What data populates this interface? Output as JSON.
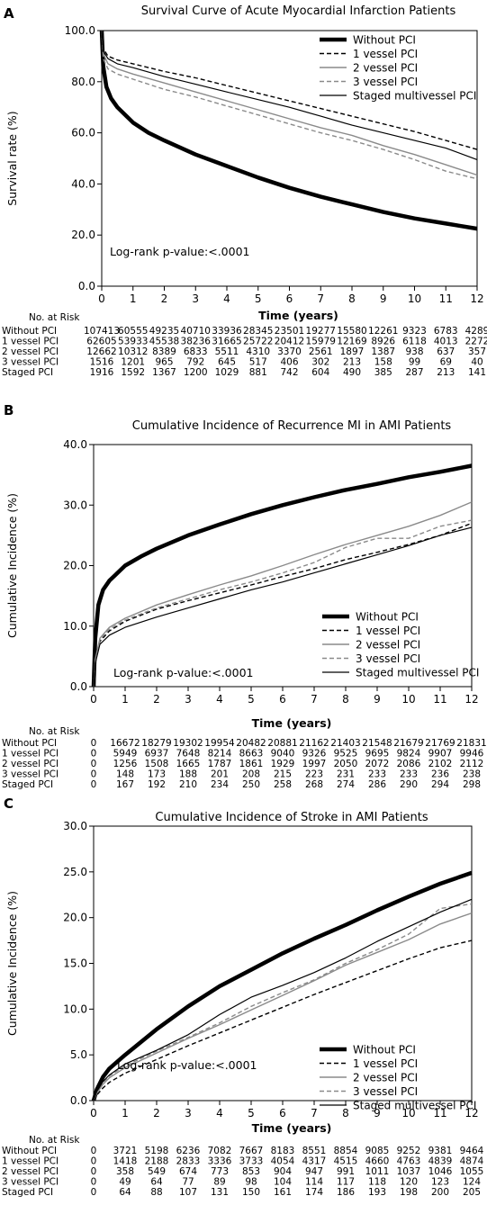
{
  "chart_data": [
    {
      "panel_letter": "A",
      "type": "line",
      "title": "Survival Curve of Acute Myocardial Infarction Patients",
      "xlabel": "Time (years)",
      "ylabel": "Survival rate (%)",
      "xlim": [
        0,
        12
      ],
      "ylim": [
        0,
        100
      ],
      "x_ticks": [
        0,
        1,
        2,
        3,
        4,
        5,
        6,
        7,
        8,
        9,
        10,
        11,
        12
      ],
      "y_ticks": [
        0.0,
        20.0,
        40.0,
        60.0,
        80.0,
        100.0
      ],
      "y_tick_labels": [
        "0.0",
        "20.0",
        "40.0",
        "60.0",
        "80.0",
        "100.0"
      ],
      "legend_position": "top-right",
      "annotation": "Log-rank p-value:<.0001",
      "series": [
        {
          "name": "Without PCI",
          "style": "thick",
          "color": "#000000",
          "x": [
            0,
            0.05,
            0.15,
            0.3,
            0.5,
            1,
            1.5,
            2,
            3,
            4,
            5,
            6,
            7,
            8,
            9,
            10,
            11,
            12
          ],
          "y": [
            100,
            86,
            78,
            73.5,
            70,
            64,
            60,
            57,
            51.5,
            47,
            42.5,
            38.5,
            35,
            32,
            29,
            26.5,
            24.5,
            22.5
          ]
        },
        {
          "name": "1 vessel PCI",
          "style": "dashed",
          "color": "#000000",
          "x": [
            0,
            0.05,
            0.2,
            0.5,
            1,
            2,
            3,
            4,
            5,
            6,
            7,
            8,
            9,
            10,
            11,
            12
          ],
          "y": [
            100,
            93,
            90,
            88.5,
            87,
            84,
            81.5,
            78.5,
            75.5,
            72.5,
            69.5,
            66.5,
            63.5,
            60.5,
            57,
            53.5
          ]
        },
        {
          "name": "2 vessel PCI",
          "style": "solid-gray",
          "color": "#8a8a8a",
          "x": [
            0,
            0.05,
            0.2,
            0.5,
            1,
            2,
            3,
            4,
            5,
            6,
            7,
            8,
            9,
            10,
            11,
            12
          ],
          "y": [
            100,
            91,
            87,
            85,
            83,
            79.5,
            76,
            72.5,
            69,
            65.5,
            62,
            59,
            55,
            51.5,
            47.5,
            43.5
          ]
        },
        {
          "name": "3 vessel PCI",
          "style": "dashed-gray",
          "color": "#8a8a8a",
          "x": [
            0,
            0.05,
            0.2,
            0.5,
            1,
            2,
            3,
            4,
            5,
            6,
            7,
            8,
            9,
            10,
            11,
            12
          ],
          "y": [
            100,
            89,
            85,
            83,
            81,
            77,
            74,
            70.5,
            67,
            63.5,
            60,
            57,
            53.5,
            49.5,
            45,
            42
          ]
        },
        {
          "name": "Staged multivessel PCI",
          "style": "thin",
          "color": "#000000",
          "x": [
            0,
            0.05,
            0.2,
            0.5,
            1,
            2,
            3,
            4,
            5,
            6,
            7,
            8,
            9,
            10,
            11,
            12
          ],
          "y": [
            100,
            92,
            89,
            87,
            85.5,
            82,
            79,
            76,
            73,
            70,
            66.5,
            63,
            60,
            57,
            54,
            49.5
          ]
        }
      ],
      "risk_table": {
        "header": "No. at Risk",
        "rows": [
          {
            "label": "Without PCI",
            "values": [
              "107413",
              "60555",
              "49235",
              "40710",
              "33936",
              "28345",
              "23501",
              "19277",
              "15580",
              "12261",
              "9323",
              "6783",
              "4289"
            ]
          },
          {
            "label": "1 vessel PCI",
            "values": [
              "62605",
              "53933",
              "45538",
              "38236",
              "31665",
              "25722",
              "20412",
              "15979",
              "12169",
              "8926",
              "6118",
              "4013",
              "2272"
            ]
          },
          {
            "label": "2 vessel PCI",
            "values": [
              "12662",
              "10312",
              "8389",
              "6833",
              "5511",
              "4310",
              "3370",
              "2561",
              "1897",
              "1387",
              "938",
              "637",
              "357"
            ]
          },
          {
            "label": "3 vessel PCI",
            "values": [
              "1516",
              "1201",
              "965",
              "792",
              "645",
              "517",
              "406",
              "302",
              "213",
              "158",
              "99",
              "69",
              "40"
            ]
          },
          {
            "label": "Staged PCI",
            "values": [
              "1916",
              "1592",
              "1367",
              "1200",
              "1029",
              "881",
              "742",
              "604",
              "490",
              "385",
              "287",
              "213",
              "141"
            ]
          }
        ]
      }
    },
    {
      "panel_letter": "B",
      "type": "line",
      "title": "Cumulative Incidence of Recurrence MI in AMI Patients",
      "xlabel": "Time (years)",
      "ylabel": "Cumulative Incidence (%)",
      "xlim": [
        0,
        12
      ],
      "ylim": [
        0,
        40
      ],
      "x_ticks": [
        0,
        1,
        2,
        3,
        4,
        5,
        6,
        7,
        8,
        9,
        10,
        11,
        12
      ],
      "y_ticks": [
        0.0,
        10.0,
        20.0,
        30.0,
        40.0
      ],
      "y_tick_labels": [
        "0.0",
        "10.0",
        "20.0",
        "30.0",
        "40.0"
      ],
      "legend_position": "bottom-right",
      "annotation": "Log-rank p-value:<.0001",
      "series": [
        {
          "name": "Without PCI",
          "style": "thick",
          "color": "#000000",
          "x": [
            0,
            0.05,
            0.15,
            0.3,
            0.5,
            1,
            1.5,
            2,
            3,
            4,
            5,
            6,
            7,
            8,
            9,
            10,
            11,
            12
          ],
          "y": [
            0,
            8,
            13.5,
            16,
            17.5,
            20,
            21.5,
            22.8,
            25,
            26.8,
            28.5,
            30,
            31.3,
            32.5,
            33.5,
            34.6,
            35.5,
            36.5
          ]
        },
        {
          "name": "1 vessel PCI",
          "style": "dashed",
          "color": "#000000",
          "x": [
            0,
            0.05,
            0.2,
            0.5,
            1,
            2,
            3,
            4,
            5,
            6,
            7,
            8,
            9,
            10,
            11,
            12
          ],
          "y": [
            0,
            4,
            7.5,
            9.2,
            10.8,
            12.8,
            14.2,
            15.5,
            16.8,
            18.2,
            19.5,
            21,
            22.2,
            23.5,
            25,
            27
          ]
        },
        {
          "name": "2 vessel PCI",
          "style": "solid-gray",
          "color": "#8a8a8a",
          "x": [
            0,
            0.05,
            0.2,
            0.5,
            1,
            2,
            3,
            4,
            5,
            6,
            7,
            8,
            9,
            10,
            11,
            12
          ],
          "y": [
            0,
            4.5,
            8,
            9.8,
            11.3,
            13.5,
            15.2,
            16.8,
            18.3,
            20,
            21.8,
            23.5,
            25,
            26.5,
            28.3,
            30.5
          ]
        },
        {
          "name": "3 vessel PCI",
          "style": "dashed-gray",
          "color": "#8a8a8a",
          "x": [
            0,
            0.05,
            0.2,
            0.5,
            1,
            2,
            3,
            4,
            5,
            6,
            7,
            8,
            9,
            10,
            11,
            12
          ],
          "y": [
            0,
            4.2,
            7.8,
            9.5,
            11,
            13,
            14.5,
            16,
            17.3,
            18.8,
            20.5,
            23,
            24.5,
            24.5,
            26.5,
            27.5
          ]
        },
        {
          "name": "Staged multivessel PCI",
          "style": "thin",
          "color": "#000000",
          "x": [
            0,
            0.05,
            0.2,
            0.5,
            1,
            2,
            3,
            4,
            5,
            6,
            7,
            8,
            9,
            10,
            11,
            12
          ],
          "y": [
            0,
            3.8,
            7,
            8.5,
            9.8,
            11.5,
            13,
            14.5,
            16,
            17.3,
            18.8,
            20.3,
            21.8,
            23.3,
            25,
            26.3
          ]
        }
      ],
      "risk_table": {
        "header": "No. at Risk",
        "rows": [
          {
            "label": "Without PCI",
            "values": [
              "0",
              "16672",
              "18279",
              "19302",
              "19954",
              "20482",
              "20881",
              "21162",
              "21403",
              "21548",
              "21679",
              "21769",
              "21831"
            ]
          },
          {
            "label": "1 vessel PCI",
            "values": [
              "0",
              "5949",
              "6937",
              "7648",
              "8214",
              "8663",
              "9040",
              "9326",
              "9525",
              "9695",
              "9824",
              "9907",
              "9946"
            ]
          },
          {
            "label": "2 vessel PCI",
            "values": [
              "0",
              "1256",
              "1508",
              "1665",
              "1787",
              "1861",
              "1929",
              "1997",
              "2050",
              "2072",
              "2086",
              "2102",
              "2112"
            ]
          },
          {
            "label": "3 vessel PCI",
            "values": [
              "0",
              "148",
              "173",
              "188",
              "201",
              "208",
              "215",
              "223",
              "231",
              "233",
              "233",
              "236",
              "238"
            ]
          },
          {
            "label": "Staged PCI",
            "values": [
              "0",
              "167",
              "192",
              "210",
              "234",
              "250",
              "258",
              "268",
              "274",
              "286",
              "290",
              "294",
              "298"
            ]
          }
        ]
      }
    },
    {
      "panel_letter": "C",
      "type": "line",
      "title": "Cumulative Incidence of Stroke in AMI Patients",
      "xlabel": "Time (years)",
      "ylabel": "Cumulative Incidence (%)",
      "xlim": [
        0,
        12
      ],
      "ylim": [
        0,
        30
      ],
      "x_ticks": [
        0,
        1,
        2,
        3,
        4,
        5,
        6,
        7,
        8,
        9,
        10,
        11,
        12
      ],
      "y_ticks": [
        0.0,
        5.0,
        10.0,
        15.0,
        20.0,
        25.0,
        30.0
      ],
      "y_tick_labels": [
        "0.0",
        "5.0",
        "10.0",
        "15.0",
        "20.0",
        "25.0",
        "30.0"
      ],
      "legend_position": "bottom-right",
      "annotation": "Log-rank p-value:<.0001",
      "series": [
        {
          "name": "Without PCI",
          "style": "thick",
          "color": "#000000",
          "x": [
            0,
            0.1,
            0.3,
            0.5,
            1,
            2,
            3,
            4,
            5,
            6,
            7,
            8,
            9,
            10,
            11,
            12
          ],
          "y": [
            0,
            1.2,
            2.6,
            3.5,
            5,
            7.8,
            10.3,
            12.5,
            14.3,
            16.1,
            17.7,
            19.2,
            20.8,
            22.3,
            23.7,
            24.9
          ]
        },
        {
          "name": "1 vessel PCI",
          "style": "dashed",
          "color": "#000000",
          "x": [
            0,
            0.1,
            0.3,
            0.5,
            1,
            2,
            3,
            4,
            5,
            6,
            7,
            8,
            9,
            10,
            11,
            12
          ],
          "y": [
            0,
            0.6,
            1.4,
            2,
            3,
            4.5,
            6,
            7.4,
            8.8,
            10.2,
            11.6,
            12.9,
            14.2,
            15.5,
            16.7,
            17.5
          ]
        },
        {
          "name": "2 vessel PCI",
          "style": "solid-gray",
          "color": "#8a8a8a",
          "x": [
            0,
            0.1,
            0.3,
            0.5,
            1,
            2,
            3,
            4,
            5,
            6,
            7,
            8,
            9,
            10,
            11,
            12
          ],
          "y": [
            0,
            0.8,
            1.8,
            2.5,
            3.6,
            5.2,
            6.8,
            8.3,
            9.9,
            11.5,
            13.1,
            14.8,
            16.2,
            17.6,
            19.3,
            20.5
          ]
        },
        {
          "name": "3 vessel PCI",
          "style": "dashed-gray",
          "color": "#8a8a8a",
          "x": [
            0,
            0.1,
            0.3,
            0.5,
            1,
            2,
            3,
            4,
            5,
            6,
            7,
            8,
            9,
            10,
            11,
            12
          ],
          "y": [
            0,
            0.9,
            2,
            2.7,
            3.8,
            5.4,
            6.9,
            8.5,
            10.3,
            11.8,
            13.2,
            15,
            16.5,
            18.2,
            21,
            21.5
          ]
        },
        {
          "name": "Staged multivessel PCI",
          "style": "thin",
          "color": "#000000",
          "x": [
            0,
            0.1,
            0.3,
            0.5,
            1,
            2,
            3,
            4,
            5,
            6,
            7,
            8,
            9,
            10,
            11,
            12
          ],
          "y": [
            0,
            1,
            2.1,
            2.8,
            4,
            5.5,
            7.2,
            9.4,
            11.3,
            12.6,
            14,
            15.6,
            17.4,
            19,
            20.6,
            22
          ]
        }
      ],
      "risk_table": {
        "header": "No. at Risk",
        "rows": [
          {
            "label": "Without PCI",
            "values": [
              "0",
              "3721",
              "5198",
              "6236",
              "7082",
              "7667",
              "8183",
              "8551",
              "8854",
              "9085",
              "9252",
              "9381",
              "9464"
            ]
          },
          {
            "label": "1 vessel PCI",
            "values": [
              "0",
              "1418",
              "2188",
              "2833",
              "3336",
              "3733",
              "4054",
              "4317",
              "4515",
              "4660",
              "4763",
              "4839",
              "4874"
            ]
          },
          {
            "label": "2 vessel PCI",
            "values": [
              "0",
              "358",
              "549",
              "674",
              "773",
              "853",
              "904",
              "947",
              "991",
              "1011",
              "1037",
              "1046",
              "1055"
            ]
          },
          {
            "label": "3 vessel PCI",
            "values": [
              "0",
              "49",
              "64",
              "77",
              "89",
              "98",
              "104",
              "114",
              "117",
              "118",
              "120",
              "123",
              "124"
            ]
          },
          {
            "label": "Staged PCI",
            "values": [
              "0",
              "64",
              "88",
              "107",
              "131",
              "150",
              "161",
              "174",
              "186",
              "193",
              "198",
              "200",
              "205"
            ]
          }
        ]
      }
    }
  ]
}
